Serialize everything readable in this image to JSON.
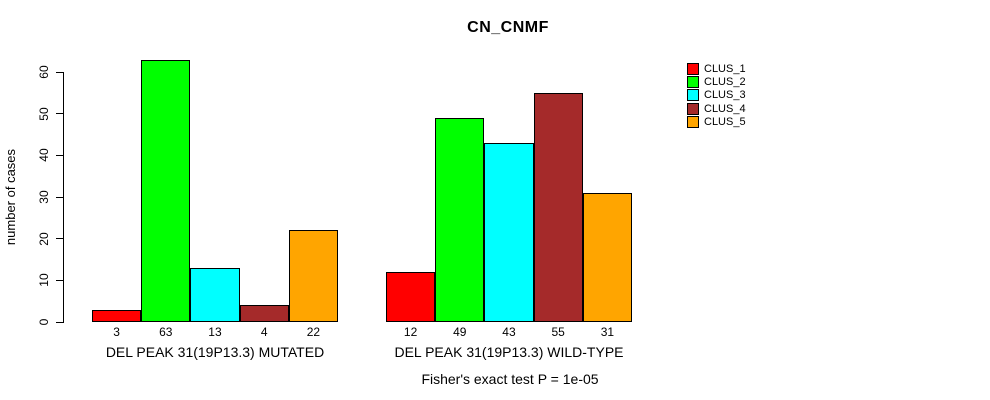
{
  "title": "CN_CNMF",
  "y_axis": {
    "label": "number of cases",
    "ticks": [
      0,
      10,
      20,
      30,
      40,
      50,
      60
    ]
  },
  "footnote": "Fisher's exact test P = 1e-05",
  "legend": {
    "items": [
      {
        "label": "CLUS_1",
        "color": "#FF0000"
      },
      {
        "label": "CLUS_2",
        "color": "#00FF00"
      },
      {
        "label": "CLUS_3",
        "color": "#00FFFF"
      },
      {
        "label": "CLUS_4",
        "color": "#A52A2A"
      },
      {
        "label": "CLUS_5",
        "color": "#FFA500"
      }
    ]
  },
  "chart_data": {
    "type": "bar",
    "title": "CN_CNMF",
    "xlabel": "",
    "ylabel": "number of cases",
    "ylim": [
      0,
      65
    ],
    "yticks": [
      0,
      10,
      20,
      30,
      40,
      50,
      60
    ],
    "grid": false,
    "legend_position": "right",
    "bar_border_color": "#000000",
    "series_names": [
      "CLUS_1",
      "CLUS_2",
      "CLUS_3",
      "CLUS_4",
      "CLUS_5"
    ],
    "series_colors": [
      "#FF0000",
      "#00FF00",
      "#00FFFF",
      "#A52A2A",
      "#FFA500"
    ],
    "groups": [
      {
        "label": "DEL PEAK 31(19P13.3) MUTATED",
        "values": [
          3,
          63,
          13,
          4,
          22
        ]
      },
      {
        "label": "DEL PEAK 31(19P13.3) WILD-TYPE",
        "values": [
          12,
          49,
          43,
          55,
          31
        ]
      }
    ],
    "bar_value_labels_shown": true,
    "annotation": "Fisher's exact test P = 1e-05"
  }
}
